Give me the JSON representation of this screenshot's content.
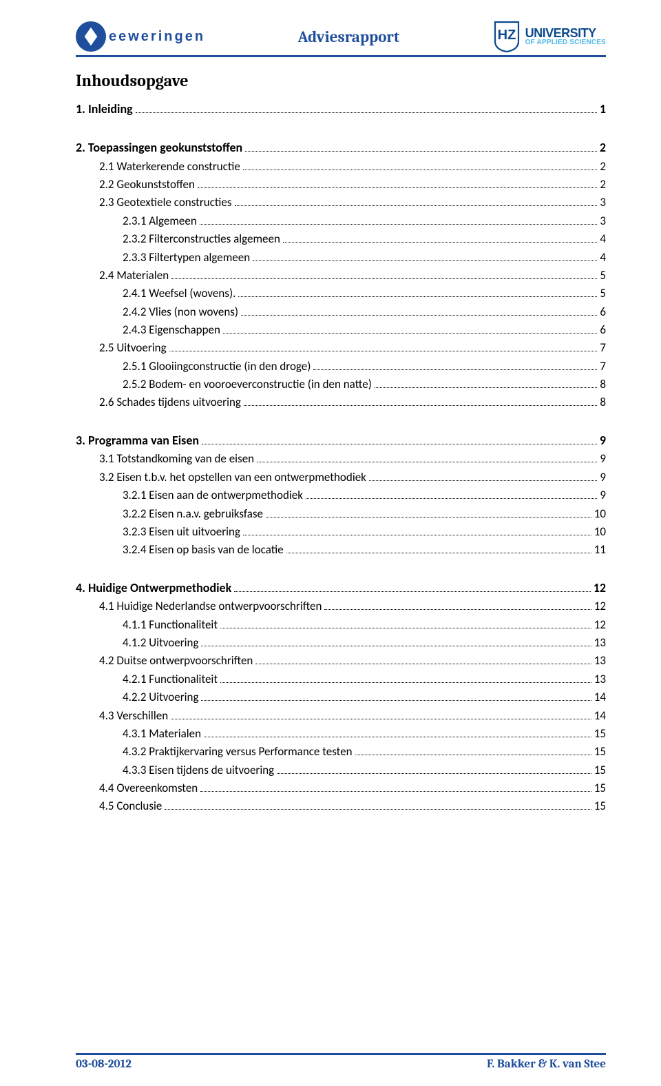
{
  "colors": {
    "brand_blue": "#1f4e9c",
    "hz_blue": "#0b4a8e",
    "hz_cyan": "#4db8e8",
    "text": "#000000",
    "background": "#ffffff"
  },
  "header": {
    "left_logo_text": "eeweringen",
    "title": "Adviesrapport",
    "uni_top": "UNIVERSITY",
    "uni_bottom": "OF APPLIED SCIENCES",
    "hz_letters": "HZ"
  },
  "toc_title": "Inhoudsopgave",
  "toc": [
    {
      "level": 1,
      "label": "1.   Inleiding",
      "page": "1"
    },
    {
      "level": 1,
      "label": "2.   Toepassingen geokunststoffen",
      "page": "2"
    },
    {
      "level": 2,
      "label": "2.1 Waterkerende constructie",
      "page": "2"
    },
    {
      "level": 2,
      "label": "2.2 Geokunststoffen",
      "page": "2"
    },
    {
      "level": 2,
      "label": "2.3 Geotextiele constructies",
      "page": "3"
    },
    {
      "level": 3,
      "label": "2.3.1 Algemeen",
      "page": "3"
    },
    {
      "level": 3,
      "label": "2.3.2 Filterconstructies algemeen",
      "page": "4"
    },
    {
      "level": 3,
      "label": "2.3.3 Filtertypen algemeen",
      "page": "4"
    },
    {
      "level": 2,
      "label": "2.4 Materialen",
      "page": "5"
    },
    {
      "level": 3,
      "label": "2.4.1 Weefsel (wovens). ",
      "page": "5"
    },
    {
      "level": 3,
      "label": "2.4.2 Vlies (non wovens)",
      "page": "6"
    },
    {
      "level": 3,
      "label": "2.4.3 Eigenschappen",
      "page": "6"
    },
    {
      "level": 2,
      "label": "2.5 Uitvoering",
      "page": "7"
    },
    {
      "level": 3,
      "label": "2.5.1 Glooiingconstructie (in den droge)",
      "page": "7"
    },
    {
      "level": 3,
      "label": "2.5.2 Bodem- en vooroeverconstructie (in den natte)",
      "page": "8"
    },
    {
      "level": 2,
      "label": "2.6 Schades tijdens uitvoering",
      "page": "8"
    },
    {
      "level": 1,
      "label": "3.   Programma van Eisen",
      "page": "9"
    },
    {
      "level": 2,
      "label": "3.1 Totstandkoming van de eisen",
      "page": "9"
    },
    {
      "level": 2,
      "label": "3.2 Eisen t.b.v. het opstellen van een ontwerpmethodiek",
      "page": "9"
    },
    {
      "level": 3,
      "label": "3.2.1 Eisen aan de ontwerpmethodiek",
      "page": "9"
    },
    {
      "level": 3,
      "label": "3.2.2 Eisen n.a.v. gebruiksfase",
      "page": "10"
    },
    {
      "level": 3,
      "label": "3.2.3 Eisen uit uitvoering",
      "page": "10"
    },
    {
      "level": 3,
      "label": "3.2.4 Eisen op basis van de locatie",
      "page": "11"
    },
    {
      "level": 1,
      "label": "4.   Huidige Ontwerpmethodiek",
      "page": "12"
    },
    {
      "level": 2,
      "label": "4.1 Huidige Nederlandse ontwerpvoorschriften",
      "page": "12"
    },
    {
      "level": 3,
      "label": "4.1.1 Functionaliteit",
      "page": "12"
    },
    {
      "level": 3,
      "label": "4.1.2 Uitvoering",
      "page": "13"
    },
    {
      "level": 2,
      "label": "4.2 Duitse ontwerpvoorschriften",
      "page": "13"
    },
    {
      "level": 3,
      "label": "4.2.1 Functionaliteit",
      "page": "13"
    },
    {
      "level": 3,
      "label": "4.2.2 Uitvoering",
      "page": "14"
    },
    {
      "level": 2,
      "label": "4.3 Verschillen",
      "page": "14"
    },
    {
      "level": 3,
      "label": "4.3.1 Materialen",
      "page": "15"
    },
    {
      "level": 3,
      "label": "4.3.2 Praktijkervaring versus Performance testen",
      "page": "15"
    },
    {
      "level": 3,
      "label": "4.3.3 Eisen tijdens de uitvoering",
      "page": "15"
    },
    {
      "level": 2,
      "label": "4.4 Overeenkomsten",
      "page": "15"
    },
    {
      "level": 2,
      "label": "4.5 Conclusie",
      "page": "15"
    }
  ],
  "footer": {
    "date": "03-08-2012",
    "authors": "F. Bakker & K. van Stee"
  }
}
